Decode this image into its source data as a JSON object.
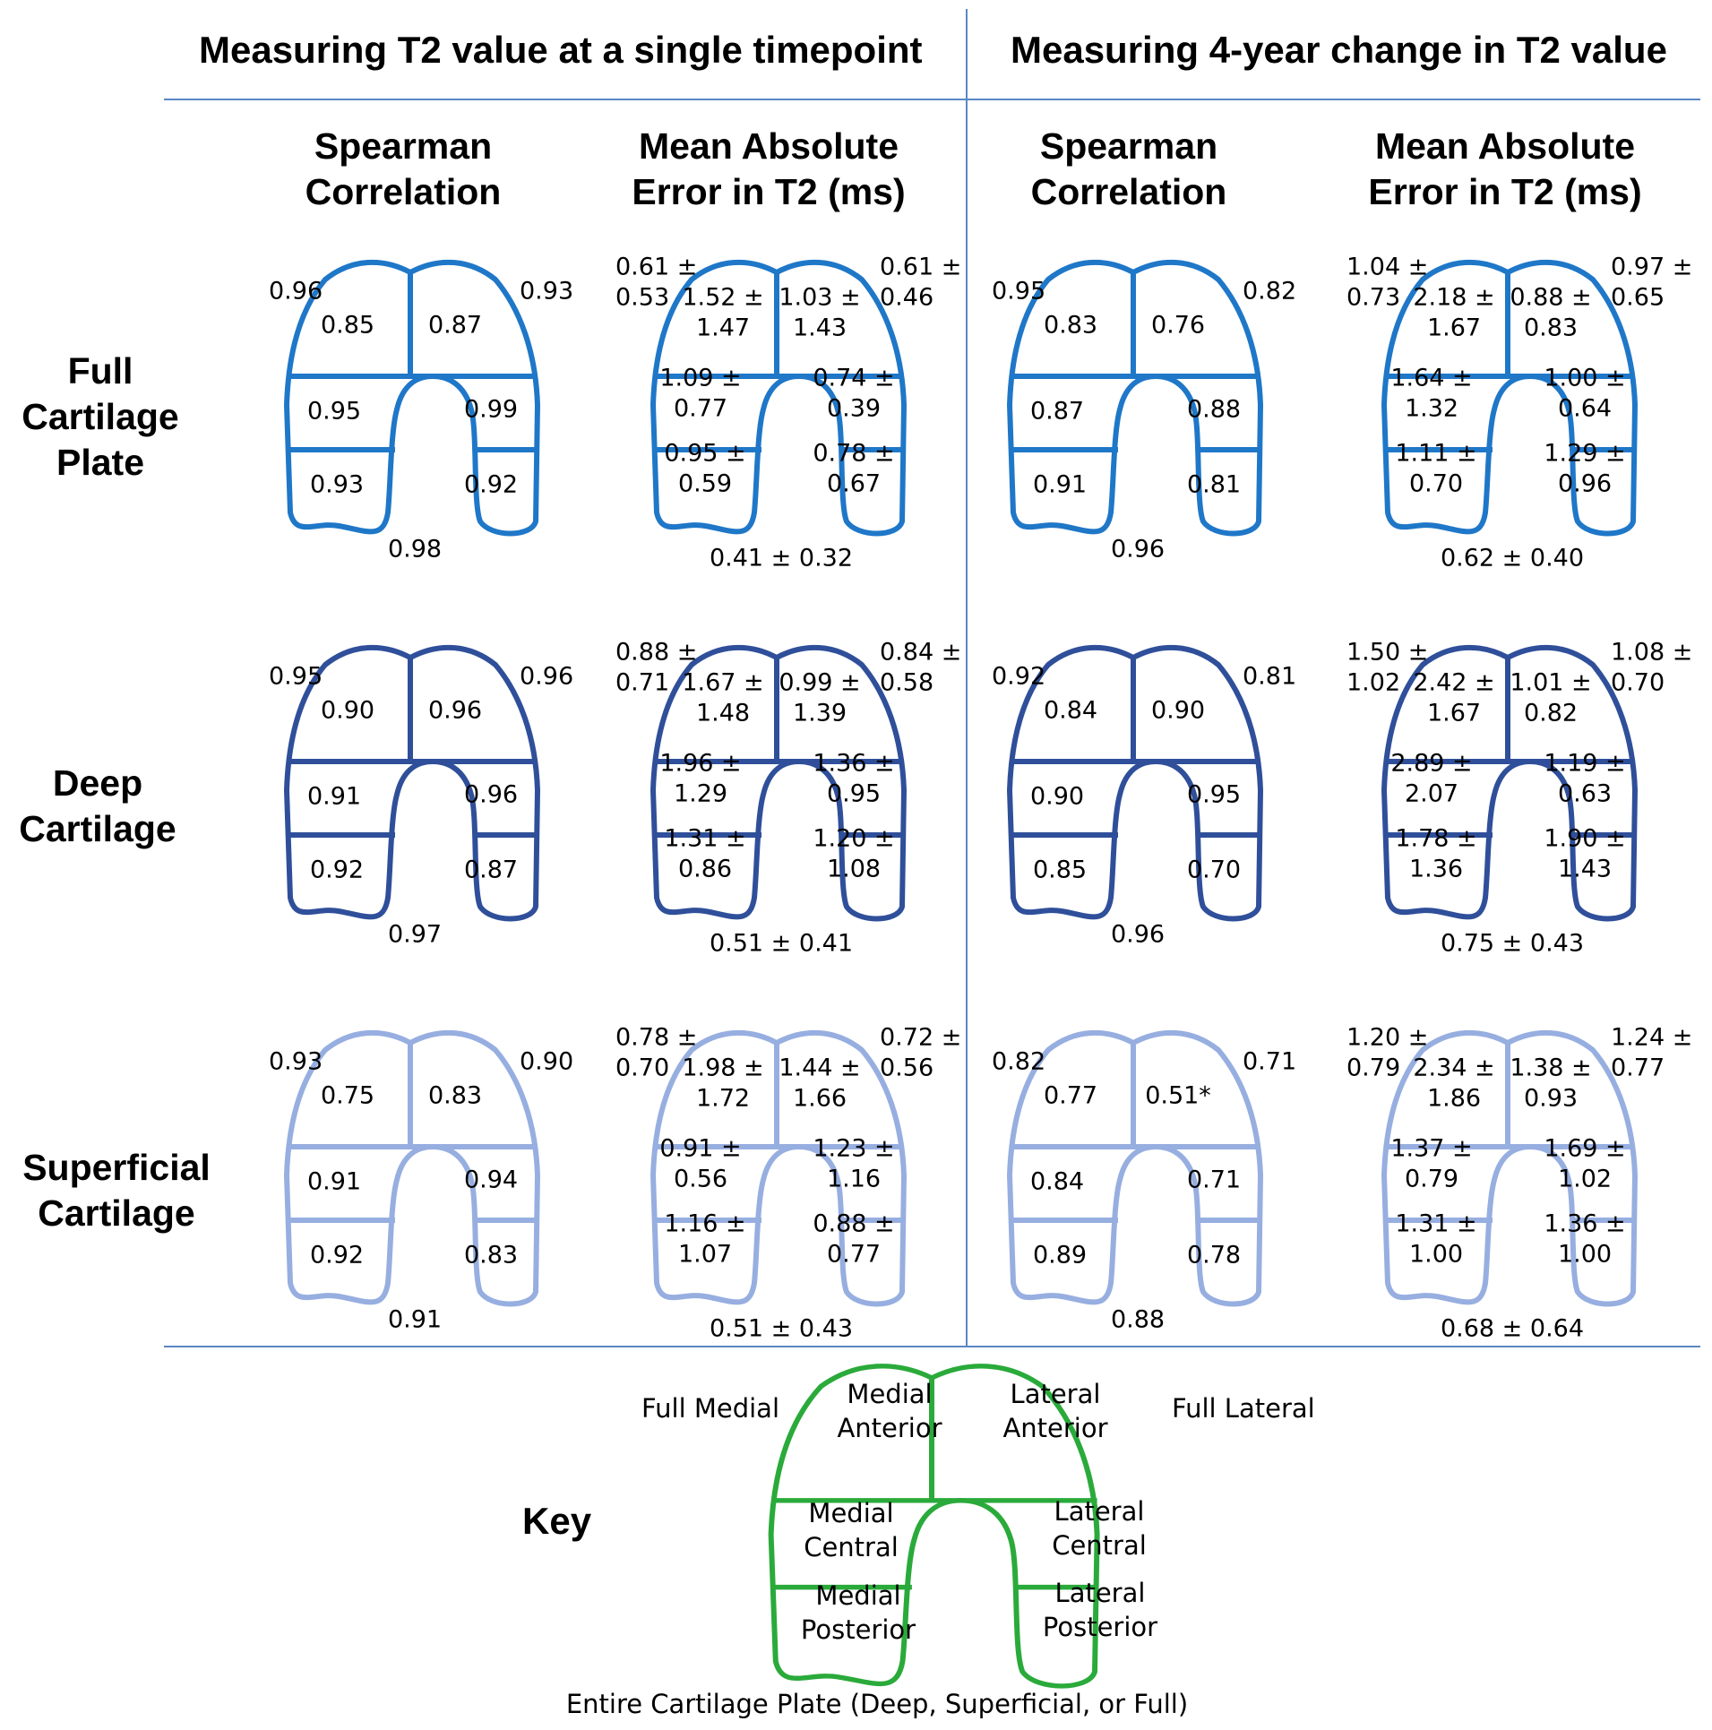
{
  "section_titles": [
    "Measuring T2 value at a single timepoint",
    "Measuring 4-year change in T2 value"
  ],
  "column_titles": [
    [
      "Spearman",
      "Correlation"
    ],
    [
      "Mean Absolute",
      "Error in T2 (ms)"
    ],
    [
      "Spearman",
      "Correlation"
    ],
    [
      "Mean Absolute",
      "Error in T2 (ms)"
    ]
  ],
  "row_titles": [
    [
      "Full",
      "Cartilage",
      "Plate"
    ],
    [
      "Deep",
      "Cartilage"
    ],
    [
      "Superficial",
      "Cartilage"
    ]
  ],
  "colors": {
    "full": "#1f77c8",
    "deep": "#2f4f9a",
    "superficial": "#97aee0",
    "key": "#2aaa3a",
    "divider": "#5b87c4"
  },
  "panels": [
    [
      {
        "full_medial": [
          "0.96"
        ],
        "medial_anterior": [
          "0.85"
        ],
        "lateral_anterior": [
          "0.87"
        ],
        "full_lateral": [
          "0.93"
        ],
        "medial_central": [
          "0.95"
        ],
        "lateral_central": [
          "0.99"
        ],
        "medial_posterior": [
          "0.93"
        ],
        "lateral_posterior": [
          "0.92"
        ],
        "entire": [
          "0.98"
        ]
      },
      {
        "full_medial": [
          "0.61 ±",
          "0.53"
        ],
        "medial_anterior": [
          "1.52 ±",
          "1.47"
        ],
        "lateral_anterior": [
          "1.03 ±",
          "1.43"
        ],
        "full_lateral": [
          "0.61 ±",
          "0.46"
        ],
        "medial_central": [
          "1.09 ±",
          "0.77"
        ],
        "lateral_central": [
          "0.74 ±",
          "0.39"
        ],
        "medial_posterior": [
          "0.95 ±",
          "0.59"
        ],
        "lateral_posterior": [
          "0.78 ±",
          "0.67"
        ],
        "entire": [
          "0.41 ± 0.32"
        ]
      },
      {
        "full_medial": [
          "0.95"
        ],
        "medial_anterior": [
          "0.83"
        ],
        "lateral_anterior": [
          "0.76"
        ],
        "full_lateral": [
          "0.82"
        ],
        "medial_central": [
          "0.87"
        ],
        "lateral_central": [
          "0.88"
        ],
        "medial_posterior": [
          "0.91"
        ],
        "lateral_posterior": [
          "0.81"
        ],
        "entire": [
          "0.96"
        ]
      },
      {
        "full_medial": [
          "1.04 ±",
          "0.73"
        ],
        "medial_anterior": [
          "2.18 ±",
          "1.67"
        ],
        "lateral_anterior": [
          "0.88 ±",
          "0.83"
        ],
        "full_lateral": [
          "0.97 ±",
          "0.65"
        ],
        "medial_central": [
          "1.64 ±",
          "1.32"
        ],
        "lateral_central": [
          "1.00 ±",
          "0.64"
        ],
        "medial_posterior": [
          "1.11 ±",
          "0.70"
        ],
        "lateral_posterior": [
          "1.29 ±",
          "0.96"
        ],
        "entire": [
          "0.62 ± 0.40"
        ]
      }
    ],
    [
      {
        "full_medial": [
          "0.95"
        ],
        "medial_anterior": [
          "0.90"
        ],
        "lateral_anterior": [
          "0.96"
        ],
        "full_lateral": [
          "0.96"
        ],
        "medial_central": [
          "0.91"
        ],
        "lateral_central": [
          "0.96"
        ],
        "medial_posterior": [
          "0.92"
        ],
        "lateral_posterior": [
          "0.87"
        ],
        "entire": [
          "0.97"
        ]
      },
      {
        "full_medial": [
          "0.88 ±",
          "0.71"
        ],
        "medial_anterior": [
          "1.67 ±",
          "1.48"
        ],
        "lateral_anterior": [
          "0.99 ±",
          "1.39"
        ],
        "full_lateral": [
          "0.84 ±",
          "0.58"
        ],
        "medial_central": [
          "1.96 ±",
          "1.29"
        ],
        "lateral_central": [
          "1.36 ±",
          "0.95"
        ],
        "medial_posterior": [
          "1.31 ±",
          "0.86"
        ],
        "lateral_posterior": [
          "1.20 ±",
          "1.08"
        ],
        "entire": [
          "0.51 ± 0.41"
        ]
      },
      {
        "full_medial": [
          "0.92"
        ],
        "medial_anterior": [
          "0.84"
        ],
        "lateral_anterior": [
          "0.90"
        ],
        "full_lateral": [
          "0.81"
        ],
        "medial_central": [
          "0.90"
        ],
        "lateral_central": [
          "0.95"
        ],
        "medial_posterior": [
          "0.85"
        ],
        "lateral_posterior": [
          "0.70"
        ],
        "entire": [
          "0.96"
        ]
      },
      {
        "full_medial": [
          "1.50 ±",
          "1.02"
        ],
        "medial_anterior": [
          "2.42 ±",
          "1.67"
        ],
        "lateral_anterior": [
          "1.01 ±",
          "0.82"
        ],
        "full_lateral": [
          "1.08 ±",
          "0.70"
        ],
        "medial_central": [
          "2.89 ±",
          "2.07"
        ],
        "lateral_central": [
          "1.19 ±",
          "0.63"
        ],
        "medial_posterior": [
          "1.78 ±",
          "1.36"
        ],
        "lateral_posterior": [
          "1.90 ±",
          "1.43"
        ],
        "entire": [
          "0.75 ± 0.43"
        ]
      }
    ],
    [
      {
        "full_medial": [
          "0.93"
        ],
        "medial_anterior": [
          "0.75"
        ],
        "lateral_anterior": [
          "0.83"
        ],
        "full_lateral": [
          "0.90"
        ],
        "medial_central": [
          "0.91"
        ],
        "lateral_central": [
          "0.94"
        ],
        "medial_posterior": [
          "0.92"
        ],
        "lateral_posterior": [
          "0.83"
        ],
        "entire": [
          "0.91"
        ]
      },
      {
        "full_medial": [
          "0.78 ±",
          "0.70"
        ],
        "medial_anterior": [
          "1.98 ±",
          "1.72"
        ],
        "lateral_anterior": [
          "1.44 ±",
          "1.66"
        ],
        "full_lateral": [
          "0.72 ±",
          "0.56"
        ],
        "medial_central": [
          "0.91 ±",
          "0.56"
        ],
        "lateral_central": [
          "1.23 ±",
          "1.16"
        ],
        "medial_posterior": [
          "1.16 ±",
          "1.07"
        ],
        "lateral_posterior": [
          "0.88 ±",
          "0.77"
        ],
        "entire": [
          "0.51 ± 0.43"
        ]
      },
      {
        "full_medial": [
          "0.82"
        ],
        "medial_anterior": [
          "0.77"
        ],
        "lateral_anterior": [
          "0.51*"
        ],
        "full_lateral": [
          "0.71"
        ],
        "medial_central": [
          "0.84"
        ],
        "lateral_central": [
          "0.71"
        ],
        "medial_posterior": [
          "0.89"
        ],
        "lateral_posterior": [
          "0.78"
        ],
        "entire": [
          "0.88"
        ]
      },
      {
        "full_medial": [
          "1.20 ±",
          "0.79"
        ],
        "medial_anterior": [
          "2.34 ±",
          "1.86"
        ],
        "lateral_anterior": [
          "1.38 ±",
          "0.93"
        ],
        "full_lateral": [
          "1.24 ±",
          "0.77"
        ],
        "medial_central": [
          "1.37 ±",
          "0.79"
        ],
        "lateral_central": [
          "1.69 ±",
          "1.02"
        ],
        "medial_posterior": [
          "1.31 ±",
          "1.00"
        ],
        "lateral_posterior": [
          "1.36 ±",
          "1.00"
        ],
        "entire": [
          "0.68 ± 0.64"
        ]
      }
    ]
  ],
  "key": {
    "title": "Key",
    "full_medial": [
      "Full Medial"
    ],
    "medial_anterior": [
      "Medial",
      "Anterior"
    ],
    "lateral_anterior": [
      "Lateral",
      "Anterior"
    ],
    "full_lateral": [
      "Full Lateral"
    ],
    "medial_central": [
      "Medial",
      "Central"
    ],
    "lateral_central": [
      "Lateral",
      "Central"
    ],
    "medial_posterior": [
      "Medial",
      "Posterior"
    ],
    "lateral_posterior": [
      "Lateral",
      "Posterior"
    ],
    "entire": [
      "Entire Cartilage Plate (Deep, Superficial, or Full)"
    ]
  }
}
